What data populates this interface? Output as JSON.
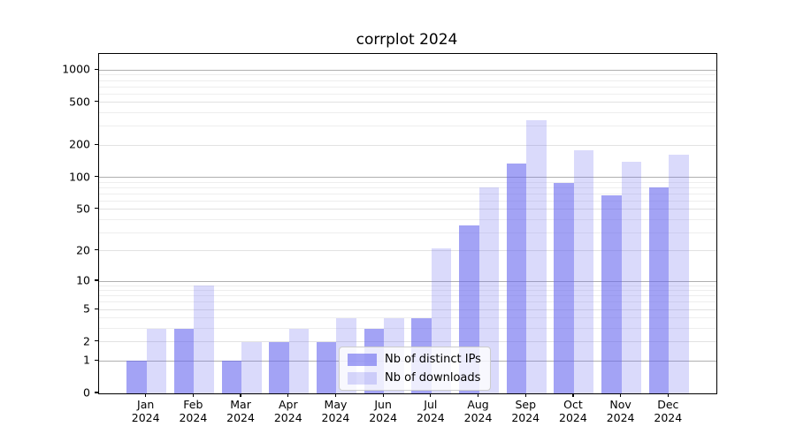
{
  "chart_data": {
    "type": "bar",
    "title": "corrplot 2024",
    "categories": [
      "Jan",
      "Feb",
      "Mar",
      "Apr",
      "May",
      "Jun",
      "Jul",
      "Aug",
      "Sep",
      "Oct",
      "Nov",
      "Dec"
    ],
    "x_year": "2024",
    "series": [
      {
        "name": "Nb of distinct IPs",
        "fill": "rgba(102,102,238,0.6)",
        "values": [
          1,
          3,
          1,
          2,
          2,
          3,
          4,
          35,
          135,
          88,
          68,
          80
        ]
      },
      {
        "name": "Nb of downloads",
        "fill": "rgba(102,102,238,0.24)",
        "values": [
          3,
          9,
          2,
          3,
          4,
          4,
          21,
          80,
          340,
          180,
          140,
          163
        ]
      }
    ],
    "y_ticks": [
      0,
      1,
      2,
      5,
      10,
      20,
      50,
      100,
      200,
      500,
      1000
    ],
    "y_scale": "log10(value+1)",
    "ylim": [
      0,
      1400
    ],
    "grid": {
      "orientation": "horizontal",
      "major_color": "#b0b0b0",
      "mid_color": "#e2e2e2",
      "minor_color": "#eeeeee"
    },
    "legend_position": "lower-center-inside"
  }
}
